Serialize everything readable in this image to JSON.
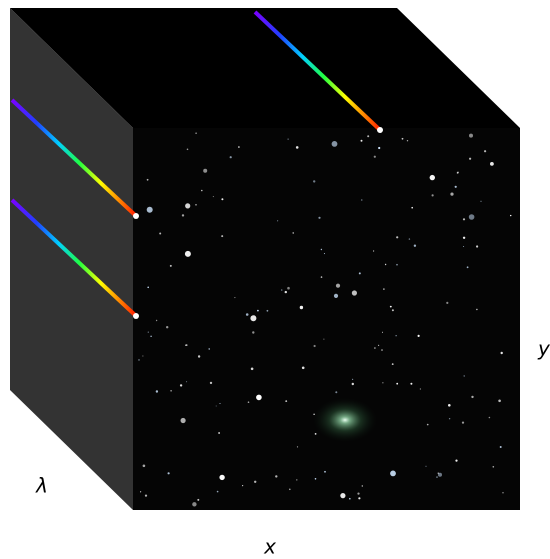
{
  "axes": {
    "lambda": "λ",
    "x": "x",
    "y": "y"
  }
}
